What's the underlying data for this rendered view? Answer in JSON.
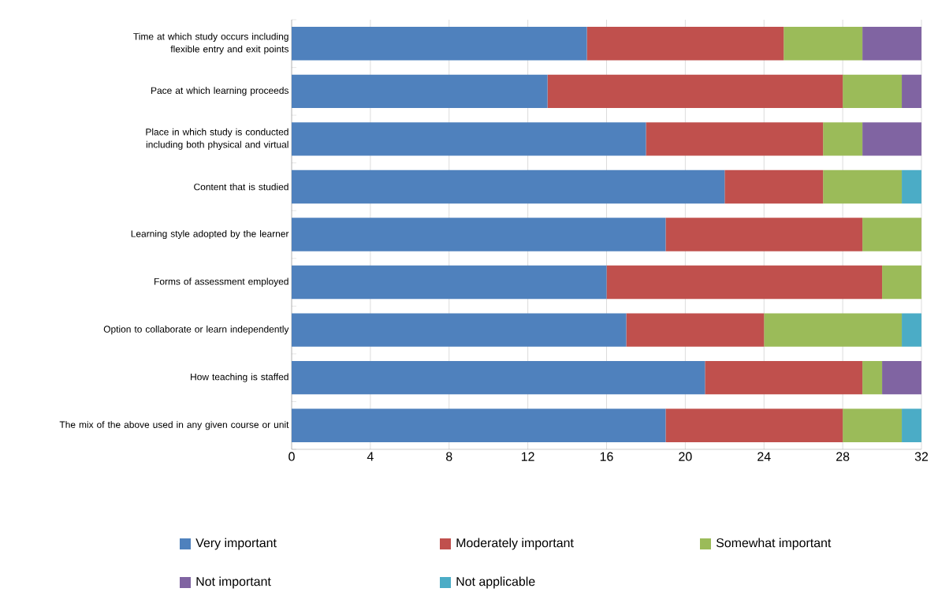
{
  "chart_data": {
    "type": "bar",
    "orientation": "horizontal",
    "stacked": true,
    "categories": [
      "Time at which study occurs including flexible entry and exit points",
      "Pace at which learning proceeds",
      "Place in which study is conducted including both physical and virtual",
      "Content that is studied",
      "Learning style adopted by the learner",
      "Forms of assessment employed",
      "Option to collaborate or learn independently",
      "How teaching is staffed",
      "The mix of the above used in any given course or unit"
    ],
    "series": [
      {
        "name": "Very important",
        "color": "#4f81bd",
        "values": [
          15,
          13,
          18,
          22,
          19,
          16,
          17,
          21,
          19
        ]
      },
      {
        "name": "Moderately important",
        "color": "#c0504d",
        "values": [
          10,
          15,
          9,
          5,
          10,
          14,
          7,
          8,
          9
        ]
      },
      {
        "name": "Somewhat important",
        "color": "#9bbb59",
        "values": [
          4,
          3,
          2,
          4,
          3,
          2,
          7,
          1,
          3
        ]
      },
      {
        "name": "Not important",
        "color": "#8064a2",
        "values": [
          3,
          1,
          3,
          null,
          null,
          null,
          null,
          2,
          null
        ]
      },
      {
        "name": "Not applicable",
        "color": "#4bacc6",
        "values": [
          null,
          null,
          null,
          1,
          null,
          null,
          1,
          null,
          1
        ]
      }
    ],
    "xlim": [
      0,
      32
    ],
    "xticks": [
      0,
      4,
      8,
      12,
      16,
      20,
      24,
      28,
      32
    ],
    "grid": "x",
    "legend": "bottom"
  }
}
